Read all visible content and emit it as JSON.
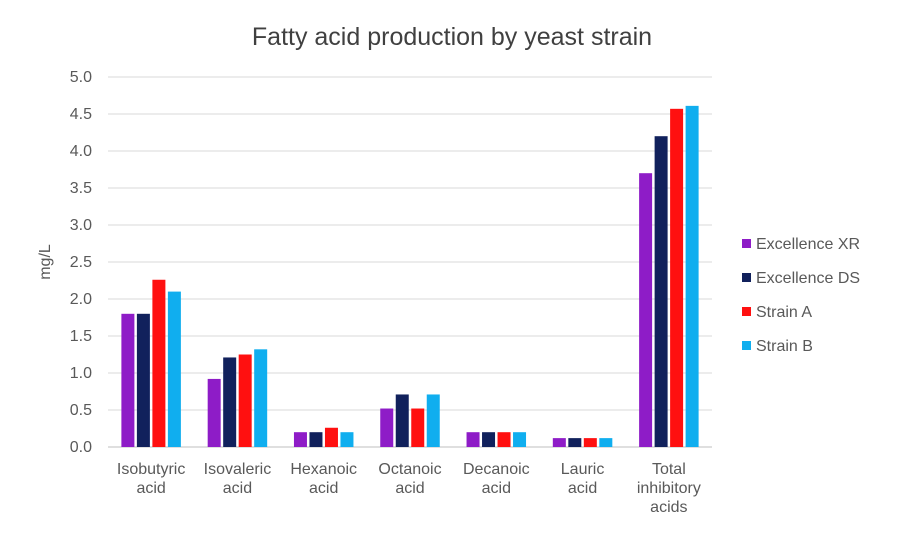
{
  "chart_data": {
    "type": "bar",
    "title": "Fatty acid production by yeast strain",
    "xlabel": "",
    "ylabel": "mg/L",
    "ylim": [
      0,
      5
    ],
    "yticks": [
      "0.0",
      "0.5",
      "1.0",
      "1.5",
      "2.0",
      "2.5",
      "3.0",
      "3.5",
      "4.0",
      "4.5",
      "5.0"
    ],
    "grid": true,
    "legend_position": "right",
    "categories": [
      [
        "Isobutyric",
        "acid"
      ],
      [
        "Isovaleric",
        "acid"
      ],
      [
        "Hexanoic",
        "acid"
      ],
      [
        "Octanoic",
        "acid"
      ],
      [
        "Decanoic",
        "acid"
      ],
      [
        "Lauric",
        "acid"
      ],
      [
        "Total",
        "inhibitory",
        "acids"
      ]
    ],
    "series": [
      {
        "name": "Excellence XR",
        "color": "#8E1CC7",
        "values": [
          1.8,
          0.92,
          0.2,
          0.52,
          0.2,
          0.12,
          3.7
        ]
      },
      {
        "name": "Excellence DS",
        "color": "#11215C",
        "values": [
          1.8,
          1.21,
          0.2,
          0.71,
          0.2,
          0.12,
          4.2
        ]
      },
      {
        "name": "Strain A",
        "color": "#FF1010",
        "values": [
          2.26,
          1.25,
          0.26,
          0.52,
          0.2,
          0.12,
          4.57
        ]
      },
      {
        "name": "Strain B",
        "color": "#10AEEF",
        "values": [
          2.1,
          1.32,
          0.2,
          0.71,
          0.2,
          0.12,
          4.61
        ]
      }
    ]
  }
}
